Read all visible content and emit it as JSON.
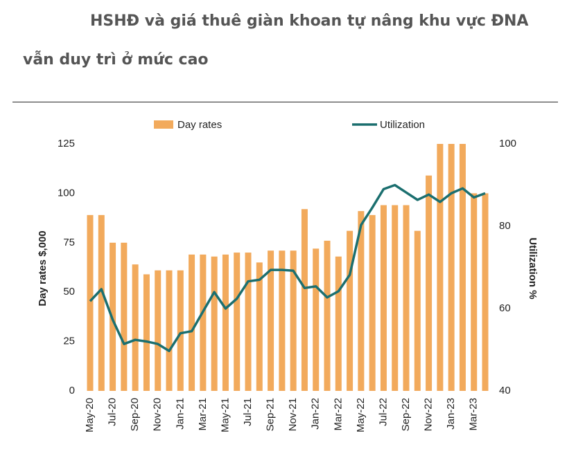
{
  "header": {
    "lines": [
      "HSHĐ và giá thuê giàn khoan tự nâng khu vực ĐNA",
      "vẫn duy trì ở mức cao"
    ]
  },
  "chart_data": {
    "type": "combo",
    "ylabel": "Day rates $,000",
    "y2label": "Utilization %",
    "categories": [
      "May-20",
      null,
      "Jul-20",
      null,
      "Sep-20",
      null,
      "Nov-20",
      null,
      "Jan-21",
      null,
      "Mar-21",
      null,
      "May-21",
      null,
      "Jul-21",
      null,
      "Sep-21",
      null,
      "Nov-21",
      null,
      "Jan-22",
      null,
      "Mar-22",
      null,
      "May-22",
      null,
      "Jul-22",
      null,
      "Sep-22",
      null,
      "Nov-22",
      null,
      "Jan-23",
      null,
      "Mar-23",
      null
    ],
    "series": [
      {
        "name": "Day rates",
        "type": "bar",
        "color": "#f2aa5c",
        "axis": "y",
        "values": [
          89,
          89,
          75,
          75,
          64,
          59,
          61,
          61,
          61,
          69,
          69,
          68,
          69,
          70,
          70,
          65,
          71,
          71,
          71,
          92,
          72,
          76,
          68,
          81,
          91,
          89,
          94,
          94,
          94,
          81,
          109,
          125,
          125,
          125,
          100,
          100
        ]
      },
      {
        "name": "Utilization",
        "type": "line",
        "color": "#1b6f6f",
        "axis": "y2",
        "values": [
          61.8,
          64.7,
          57.3,
          51.4,
          52.4,
          52,
          51.4,
          49.7,
          54,
          54.5,
          59.3,
          64,
          60,
          62.4,
          66.6,
          67,
          69.4,
          69.4,
          69.2,
          65,
          65.4,
          62.7,
          64.2,
          68.2,
          80.3,
          84.5,
          89,
          90,
          88.2,
          86.4,
          87.7,
          85.9,
          88,
          89.2,
          87,
          88
        ]
      }
    ],
    "ylim": [
      0,
      125
    ],
    "yticks": [
      0,
      25,
      50,
      75,
      100,
      125
    ],
    "y2lim": [
      40,
      100
    ],
    "y2ticks": [
      40,
      60,
      80,
      100
    ],
    "grid": false,
    "legend": "top"
  }
}
